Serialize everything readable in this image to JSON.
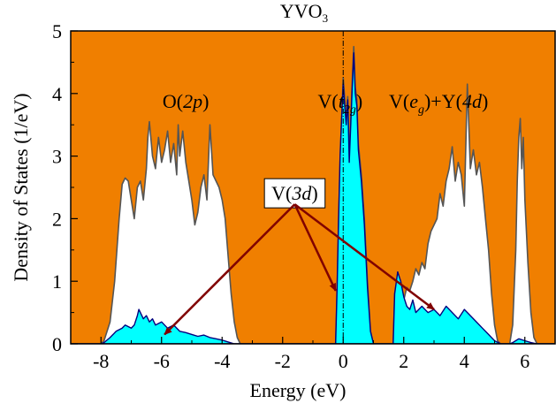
{
  "chart_data": {
    "type": "area",
    "title": "YVO",
    "title_sub": "3",
    "xlabel": "Energy (eV)",
    "ylabel": "Density of States (1/eV)",
    "xlim": [
      -9,
      7
    ],
    "ylim": [
      0,
      5
    ],
    "xticks": [
      "-8",
      "-6",
      "-4",
      "-2",
      "0",
      "2",
      "4",
      "6"
    ],
    "yticks": [
      "0",
      "1",
      "2",
      "3",
      "4",
      "5"
    ],
    "fermi_level": 0,
    "colors": {
      "background": "#f07f00",
      "total": "#ffffff",
      "total_line": "#555555",
      "v3d": "#00ffff",
      "v3d_line": "#00007f",
      "arrow": "#800000",
      "fermi_line": "#000000"
    },
    "series": [
      {
        "name": "",
        "fill": "total",
        "points": [
          [
            -9.0,
            0
          ],
          [
            -8.0,
            0
          ],
          [
            -7.9,
            0.05
          ],
          [
            -7.7,
            0.35
          ],
          [
            -7.55,
            1.0
          ],
          [
            -7.4,
            2.0
          ],
          [
            -7.3,
            2.55
          ],
          [
            -7.2,
            2.65
          ],
          [
            -7.1,
            2.6
          ],
          [
            -7.0,
            2.3
          ],
          [
            -6.9,
            2.0
          ],
          [
            -6.8,
            2.5
          ],
          [
            -6.7,
            2.6
          ],
          [
            -6.6,
            2.3
          ],
          [
            -6.5,
            2.8
          ],
          [
            -6.45,
            3.3
          ],
          [
            -6.4,
            3.55
          ],
          [
            -6.3,
            3.0
          ],
          [
            -6.2,
            2.8
          ],
          [
            -6.1,
            3.3
          ],
          [
            -6.0,
            2.9
          ],
          [
            -5.9,
            3.1
          ],
          [
            -5.8,
            3.4
          ],
          [
            -5.7,
            2.9
          ],
          [
            -5.6,
            3.2
          ],
          [
            -5.5,
            2.7
          ],
          [
            -5.45,
            3.5
          ],
          [
            -5.4,
            3.0
          ],
          [
            -5.3,
            3.4
          ],
          [
            -5.2,
            2.9
          ],
          [
            -5.1,
            2.6
          ],
          [
            -5.0,
            2.3
          ],
          [
            -4.9,
            1.9
          ],
          [
            -4.8,
            2.1
          ],
          [
            -4.7,
            2.5
          ],
          [
            -4.6,
            2.7
          ],
          [
            -4.5,
            2.3
          ],
          [
            -4.4,
            3.5
          ],
          [
            -4.3,
            2.7
          ],
          [
            -4.2,
            2.6
          ],
          [
            -4.1,
            2.5
          ],
          [
            -4.0,
            2.3
          ],
          [
            -3.9,
            2.0
          ],
          [
            -3.8,
            1.4
          ],
          [
            -3.7,
            0.8
          ],
          [
            -3.6,
            0.35
          ],
          [
            -3.5,
            0.1
          ],
          [
            -3.4,
            0
          ],
          [
            -0.25,
            0
          ],
          [
            -0.2,
            0.9
          ],
          [
            -0.15,
            2.0
          ],
          [
            -0.1,
            3.0
          ],
          [
            -0.05,
            3.6
          ],
          [
            0.0,
            4.25
          ],
          [
            0.05,
            3.9
          ],
          [
            0.1,
            3.6
          ],
          [
            0.15,
            3.95
          ],
          [
            0.2,
            3.0
          ],
          [
            0.25,
            3.55
          ],
          [
            0.3,
            4.2
          ],
          [
            0.35,
            4.75
          ],
          [
            0.4,
            4.1
          ],
          [
            0.45,
            3.9
          ],
          [
            0.5,
            3.2
          ],
          [
            0.6,
            2.7
          ],
          [
            0.7,
            2.0
          ],
          [
            0.8,
            1.0
          ],
          [
            0.9,
            0.2
          ],
          [
            1.0,
            0
          ],
          [
            1.65,
            0
          ],
          [
            1.7,
            0.8
          ],
          [
            1.8,
            1.1
          ],
          [
            1.9,
            1.0
          ],
          [
            2.0,
            0.7
          ],
          [
            2.1,
            0.9
          ],
          [
            2.2,
            0.85
          ],
          [
            2.3,
            1.0
          ],
          [
            2.4,
            1.2
          ],
          [
            2.5,
            1.1
          ],
          [
            2.6,
            1.3
          ],
          [
            2.7,
            1.2
          ],
          [
            2.8,
            1.6
          ],
          [
            2.9,
            1.8
          ],
          [
            3.0,
            1.9
          ],
          [
            3.1,
            2.0
          ],
          [
            3.2,
            2.4
          ],
          [
            3.3,
            2.2
          ],
          [
            3.4,
            2.6
          ],
          [
            3.5,
            2.8
          ],
          [
            3.6,
            3.15
          ],
          [
            3.7,
            2.6
          ],
          [
            3.8,
            2.9
          ],
          [
            3.9,
            2.7
          ],
          [
            4.0,
            2.2
          ],
          [
            4.1,
            4.15
          ],
          [
            4.2,
            2.8
          ],
          [
            4.3,
            3.1
          ],
          [
            4.4,
            2.7
          ],
          [
            4.5,
            2.9
          ],
          [
            4.6,
            2.5
          ],
          [
            4.7,
            2.0
          ],
          [
            4.8,
            1.5
          ],
          [
            4.9,
            0.8
          ],
          [
            5.0,
            0.3
          ],
          [
            5.1,
            0.05
          ],
          [
            5.2,
            0
          ],
          [
            5.5,
            0
          ],
          [
            5.6,
            0.3
          ],
          [
            5.7,
            1.5
          ],
          [
            5.75,
            2.6
          ],
          [
            5.8,
            3.3
          ],
          [
            5.85,
            3.6
          ],
          [
            5.9,
            2.8
          ],
          [
            5.95,
            3.3
          ],
          [
            6.0,
            2.3
          ],
          [
            6.1,
            1.3
          ],
          [
            6.2,
            0.5
          ],
          [
            6.3,
            0.1
          ],
          [
            6.4,
            0
          ],
          [
            7.0,
            0
          ]
        ]
      },
      {
        "name": "V(3d)",
        "fill": "v3d",
        "points": [
          [
            -9.0,
            0
          ],
          [
            -8.0,
            0
          ],
          [
            -7.9,
            0.02
          ],
          [
            -7.7,
            0.1
          ],
          [
            -7.5,
            0.2
          ],
          [
            -7.3,
            0.25
          ],
          [
            -7.2,
            0.3
          ],
          [
            -7.0,
            0.25
          ],
          [
            -6.9,
            0.3
          ],
          [
            -6.8,
            0.45
          ],
          [
            -6.75,
            0.55
          ],
          [
            -6.6,
            0.4
          ],
          [
            -6.5,
            0.45
          ],
          [
            -6.4,
            0.35
          ],
          [
            -6.3,
            0.4
          ],
          [
            -6.2,
            0.3
          ],
          [
            -6.0,
            0.35
          ],
          [
            -5.8,
            0.25
          ],
          [
            -5.6,
            0.3
          ],
          [
            -5.4,
            0.2
          ],
          [
            -5.2,
            0.18
          ],
          [
            -5.0,
            0.15
          ],
          [
            -4.8,
            0.12
          ],
          [
            -4.6,
            0.14
          ],
          [
            -4.4,
            0.1
          ],
          [
            -4.2,
            0.08
          ],
          [
            -4.0,
            0.06
          ],
          [
            -3.8,
            0.03
          ],
          [
            -3.6,
            0.0
          ],
          [
            -0.25,
            0
          ],
          [
            -0.2,
            0.9
          ],
          [
            -0.15,
            2.0
          ],
          [
            -0.1,
            3.0
          ],
          [
            -0.05,
            3.6
          ],
          [
            0.0,
            4.15
          ],
          [
            0.05,
            3.8
          ],
          [
            0.1,
            3.5
          ],
          [
            0.15,
            3.9
          ],
          [
            0.2,
            2.9
          ],
          [
            0.25,
            3.5
          ],
          [
            0.3,
            4.1
          ],
          [
            0.35,
            4.65
          ],
          [
            0.4,
            4.0
          ],
          [
            0.45,
            3.8
          ],
          [
            0.5,
            3.1
          ],
          [
            0.6,
            2.6
          ],
          [
            0.7,
            1.9
          ],
          [
            0.8,
            0.9
          ],
          [
            0.9,
            0.2
          ],
          [
            1.0,
            0
          ],
          [
            1.65,
            0
          ],
          [
            1.7,
            0.8
          ],
          [
            1.8,
            1.15
          ],
          [
            1.9,
            1.0
          ],
          [
            2.0,
            0.75
          ],
          [
            2.1,
            0.6
          ],
          [
            2.2,
            0.55
          ],
          [
            2.3,
            0.7
          ],
          [
            2.4,
            0.5
          ],
          [
            2.6,
            0.6
          ],
          [
            2.8,
            0.5
          ],
          [
            3.0,
            0.55
          ],
          [
            3.2,
            0.45
          ],
          [
            3.4,
            0.6
          ],
          [
            3.6,
            0.5
          ],
          [
            3.8,
            0.4
          ],
          [
            4.0,
            0.55
          ],
          [
            4.2,
            0.45
          ],
          [
            4.4,
            0.35
          ],
          [
            4.6,
            0.25
          ],
          [
            4.8,
            0.15
          ],
          [
            5.0,
            0.05
          ],
          [
            5.2,
            0
          ],
          [
            5.5,
            0
          ],
          [
            5.6,
            0.02
          ],
          [
            5.8,
            0.08
          ],
          [
            6.0,
            0.05
          ],
          [
            6.2,
            0.02
          ],
          [
            6.4,
            0
          ],
          [
            7.0,
            0
          ]
        ]
      }
    ],
    "annotations": [
      {
        "parts": [
          {
            "t": "O("
          },
          {
            "t": "2p",
            "italic": true
          },
          {
            "t": ")"
          }
        ],
        "x": -5.2,
        "y": 3.77
      },
      {
        "parts": [
          {
            "t": "V("
          },
          {
            "t": "t",
            "italic": true
          },
          {
            "t": "2g",
            "sub": true,
            "italic": true
          },
          {
            "t": ")"
          }
        ],
        "x": -0.1,
        "y": 3.77
      },
      {
        "parts": [
          {
            "t": "V("
          },
          {
            "t": "e",
            "italic": true
          },
          {
            "t": "g",
            "sub": true,
            "italic": true
          },
          {
            "t": ")+Y("
          },
          {
            "t": "4d",
            "italic": true
          },
          {
            "t": ")"
          }
        ],
        "x": 3.15,
        "y": 3.77
      },
      {
        "parts": [
          {
            "t": "V("
          },
          {
            "t": "3d",
            "italic": true
          },
          {
            "t": ")"
          }
        ],
        "x": -1.6,
        "y": 2.3,
        "boxed": true
      }
    ],
    "arrows": [
      {
        "from": [
          -1.6,
          2.23
        ],
        "to": [
          -5.9,
          0.15
        ]
      },
      {
        "from": [
          -1.6,
          2.23
        ],
        "to": [
          -0.25,
          0.85
        ]
      },
      {
        "from": [
          -1.6,
          2.23
        ],
        "to": [
          3.0,
          0.55
        ]
      }
    ]
  }
}
